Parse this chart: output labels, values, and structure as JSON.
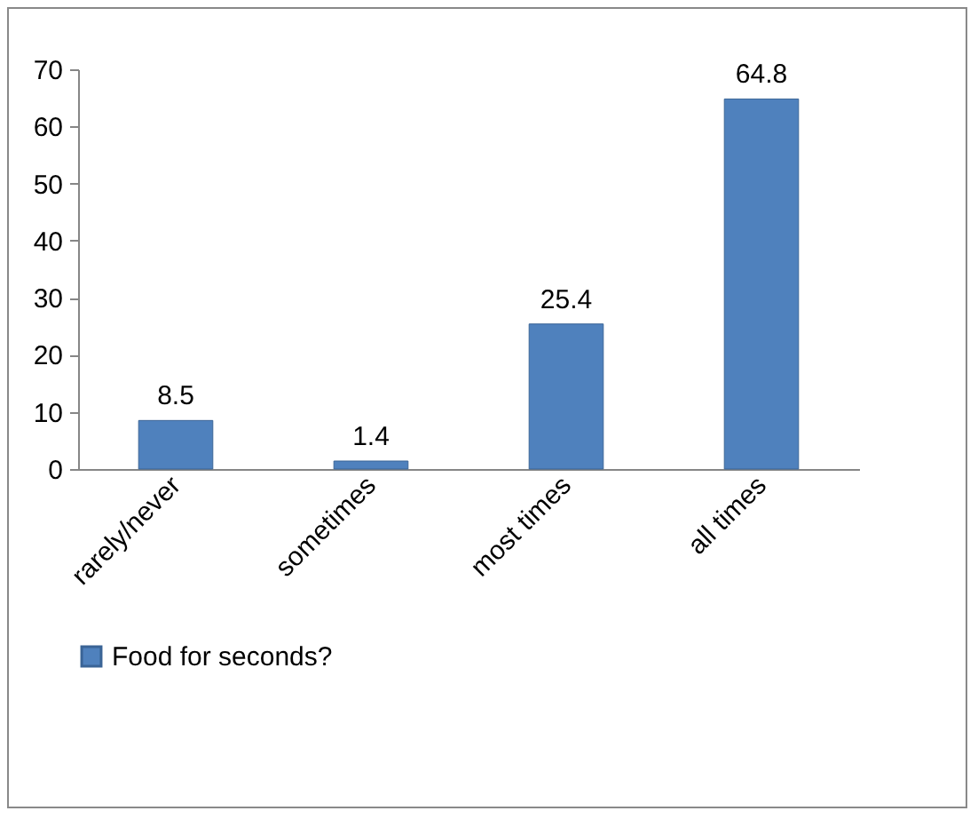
{
  "chart_data": {
    "type": "bar",
    "categories": [
      "rarely/never",
      "sometimes",
      "most times",
      "all times"
    ],
    "series": [
      {
        "name": "Food for seconds?",
        "color": "#4f81bd",
        "values": [
          8.5,
          1.4,
          25.4,
          64.8
        ]
      }
    ],
    "ylim": [
      0,
      70
    ],
    "yticks": [
      0,
      10,
      20,
      30,
      40,
      50,
      60,
      70
    ],
    "grid": false,
    "legend": "bottom",
    "data_labels": true
  }
}
